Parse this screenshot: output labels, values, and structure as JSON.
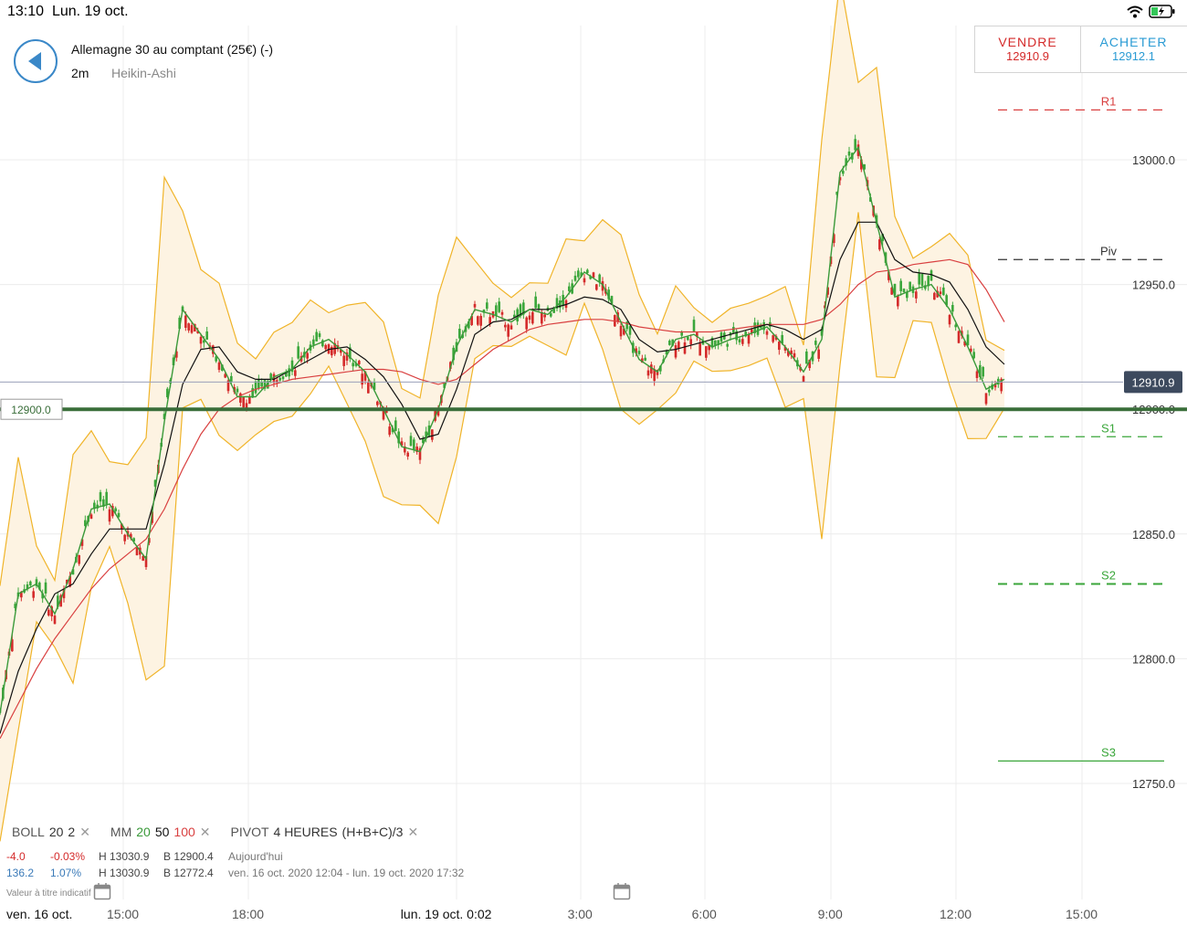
{
  "status": {
    "time": "13:10",
    "date": "Lun. 19 oct."
  },
  "header": {
    "instrument": "Allemagne 30 au comptant (25€) (-)",
    "timeframe": "2m",
    "chart_type": "Heikin-Ashi"
  },
  "trade": {
    "sell_label": "VENDRE",
    "sell_price": "12910.9",
    "buy_label": "ACHETER",
    "buy_price": "12912.1"
  },
  "indicators": {
    "boll": {
      "name": "BOLL",
      "period": "20",
      "dev": "2"
    },
    "mm": {
      "name": "MM",
      "p1": "20",
      "p2": "50",
      "p3": "100"
    },
    "pivot": {
      "name": "PIVOT",
      "period": "4 HEURES",
      "formula": "(H+B+C)/3"
    }
  },
  "info": {
    "row1": {
      "change": "-4.0",
      "pct": "-0.03%",
      "high": "H 13030.9",
      "low": "B 12900.4",
      "range": "Aujourd'hui"
    },
    "row2": {
      "change": "136.2",
      "pct": "1.07%",
      "high": "H 13030.9",
      "low": "B 12772.4",
      "range": "ven. 16 oct. 2020 12:04 - lun. 19 oct. 2020 17:32"
    },
    "disclaimer": "Valeur à titre indicatif"
  },
  "colors": {
    "up": "#3aa63a",
    "down": "#d42a2a",
    "boll": "#f0b429",
    "mm20": "#3a9a3a",
    "mm50": "#111111",
    "mm100": "#d94040",
    "accent": "#3a88c8"
  },
  "chart_data": {
    "type": "line",
    "ylim": [
      12750,
      13050
    ],
    "y_ticks": [
      13000.0,
      12950.0,
      12900.0,
      12850.0,
      12800.0,
      12750.0
    ],
    "x_ticks": [
      "ven. 16 oct.",
      "15:00",
      "18:00",
      "lun. 19 oct. 0:02",
      "3:00",
      "6:00",
      "9:00",
      "12:00",
      "15:00"
    ],
    "current_price": 12910.9,
    "current_price_label": "12910.9",
    "alert_level": 12900.0,
    "alert_label": "12900.0",
    "pivots": [
      {
        "name": "R1",
        "value": 13020
      },
      {
        "name": "Piv",
        "value": 12960
      },
      {
        "name": "S1",
        "value": 12889
      },
      {
        "name": "S2",
        "value": 12830
      },
      {
        "name": "S3",
        "value": 12759
      }
    ],
    "series": [
      {
        "name": "MM 20",
        "values": [
          12778,
          12826,
          12830,
          12818,
          12836,
          12860,
          12862,
          12850,
          12840,
          12895,
          12940,
          12930,
          12920,
          12905,
          12905,
          12913,
          12916,
          12925,
          12928,
          12922,
          12915,
          12900,
          12885,
          12883,
          12900,
          12925,
          12940,
          12938,
          12935,
          12940,
          12938,
          12945,
          12955,
          12950,
          12935,
          12920,
          12915,
          12928,
          12930,
          12925,
          12928,
          12930,
          12933,
          12925,
          12915,
          12928,
          12995,
          13005,
          12975,
          12945,
          12948,
          12950,
          12940,
          12925,
          12908,
          12912
        ]
      },
      {
        "name": "MM 50",
        "values": [
          12770,
          12795,
          12812,
          12826,
          12830,
          12842,
          12852,
          12852,
          12852,
          12878,
          12910,
          12924,
          12925,
          12915,
          12912,
          12912,
          12916,
          12920,
          12924,
          12925,
          12920,
          12913,
          12902,
          12888,
          12890,
          12908,
          12930,
          12935,
          12936,
          12940,
          12940,
          12942,
          12945,
          12944,
          12940,
          12928,
          12923,
          12924,
          12926,
          12928,
          12930,
          12932,
          12934,
          12932,
          12928,
          12932,
          12960,
          12975,
          12975,
          12960,
          12955,
          12954,
          12951,
          12940,
          12925,
          12918
        ]
      },
      {
        "name": "MM 100",
        "values": [
          12768,
          12782,
          12796,
          12808,
          12818,
          12828,
          12836,
          12842,
          12848,
          12860,
          12876,
          12890,
          12900,
          12905,
          12908,
          12910,
          12912,
          12913,
          12914,
          12915,
          12916,
          12916,
          12915,
          12912,
          12910,
          12912,
          12918,
          12924,
          12928,
          12932,
          12934,
          12935,
          12936,
          12936,
          12935,
          12933,
          12932,
          12931,
          12931,
          12931,
          12932,
          12933,
          12934,
          12934,
          12934,
          12936,
          12942,
          12950,
          12955,
          12956,
          12958,
          12959,
          12960,
          12958,
          12948,
          12935
        ]
      }
    ]
  }
}
